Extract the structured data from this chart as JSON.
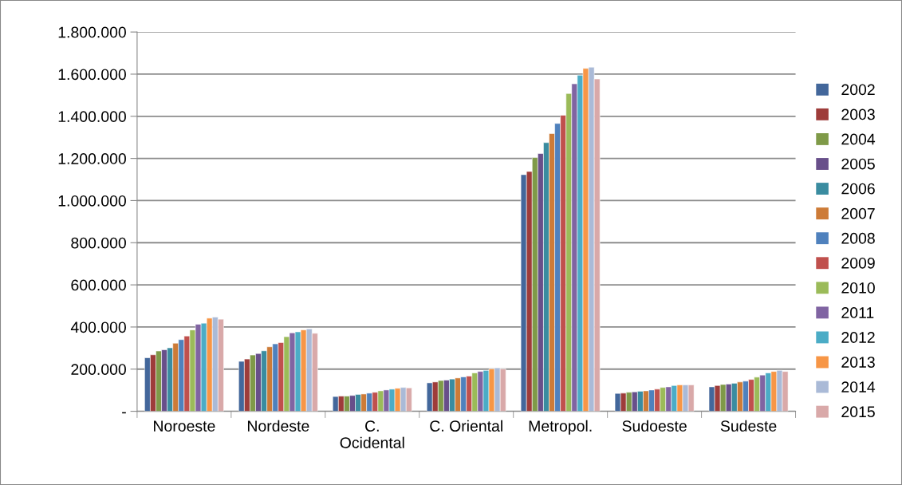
{
  "chart_data": {
    "type": "bar",
    "categories": [
      "Noroeste",
      "Nordeste",
      "C.\nOcidental",
      "C. Oriental",
      "Metropol.",
      "Sudoeste",
      "Sudeste"
    ],
    "series": [
      {
        "name": "2002",
        "color": "#43679b",
        "values": [
          254000,
          237000,
          70000,
          135000,
          1123000,
          85000,
          116000
        ]
      },
      {
        "name": "2003",
        "color": "#9e3c3a",
        "values": [
          268000,
          248000,
          72000,
          139000,
          1138000,
          86000,
          122000
        ]
      },
      {
        "name": "2004",
        "color": "#7f9a48",
        "values": [
          286000,
          267000,
          72000,
          146000,
          1204000,
          90000,
          127000
        ]
      },
      {
        "name": "2005",
        "color": "#684f8a",
        "values": [
          292000,
          274000,
          75000,
          148000,
          1223000,
          92000,
          129000
        ]
      },
      {
        "name": "2006",
        "color": "#3a8ca0",
        "values": [
          301000,
          287000,
          80000,
          153000,
          1275000,
          95000,
          133000
        ]
      },
      {
        "name": "2007",
        "color": "#cd7b37",
        "values": [
          323000,
          306000,
          82000,
          158000,
          1318000,
          97000,
          139000
        ]
      },
      {
        "name": "2008",
        "color": "#4f81bd",
        "values": [
          340000,
          320000,
          86000,
          163000,
          1366000,
          101000,
          143000
        ]
      },
      {
        "name": "2009",
        "color": "#c0504d",
        "values": [
          357000,
          326000,
          90000,
          167000,
          1405000,
          105000,
          151000
        ]
      },
      {
        "name": "2010",
        "color": "#9bbb59",
        "values": [
          386000,
          354000,
          97000,
          182000,
          1508000,
          113000,
          162000
        ]
      },
      {
        "name": "2011",
        "color": "#8064a2",
        "values": [
          413000,
          372000,
          101000,
          189000,
          1554000,
          116000,
          172000
        ]
      },
      {
        "name": "2012",
        "color": "#4bacc6",
        "values": [
          418000,
          377000,
          105000,
          194000,
          1595000,
          122000,
          182000
        ]
      },
      {
        "name": "2013",
        "color": "#f79646",
        "values": [
          442000,
          386000,
          109000,
          201000,
          1627000,
          125000,
          189000
        ]
      },
      {
        "name": "2014",
        "color": "#aabad7",
        "values": [
          447000,
          391000,
          113000,
          206000,
          1633000,
          125000,
          194000
        ]
      },
      {
        "name": "2015",
        "color": "#d9a9a9",
        "values": [
          437000,
          370000,
          111000,
          201000,
          1577000,
          125000,
          189000
        ]
      }
    ],
    "ylim": [
      0,
      1800000
    ],
    "yticks": [
      {
        "value": 0,
        "label": "-"
      },
      {
        "value": 200000,
        "label": "200.000"
      },
      {
        "value": 400000,
        "label": "400.000"
      },
      {
        "value": 600000,
        "label": "600.000"
      },
      {
        "value": 800000,
        "label": "800.000"
      },
      {
        "value": 1000000,
        "label": "1.000.000"
      },
      {
        "value": 1200000,
        "label": "1.200.000"
      },
      {
        "value": 1400000,
        "label": "1.400.000"
      },
      {
        "value": 1600000,
        "label": "1.600.000"
      },
      {
        "value": 1800000,
        "label": "1.800.000"
      }
    ],
    "grid": "y",
    "legend": "right"
  }
}
